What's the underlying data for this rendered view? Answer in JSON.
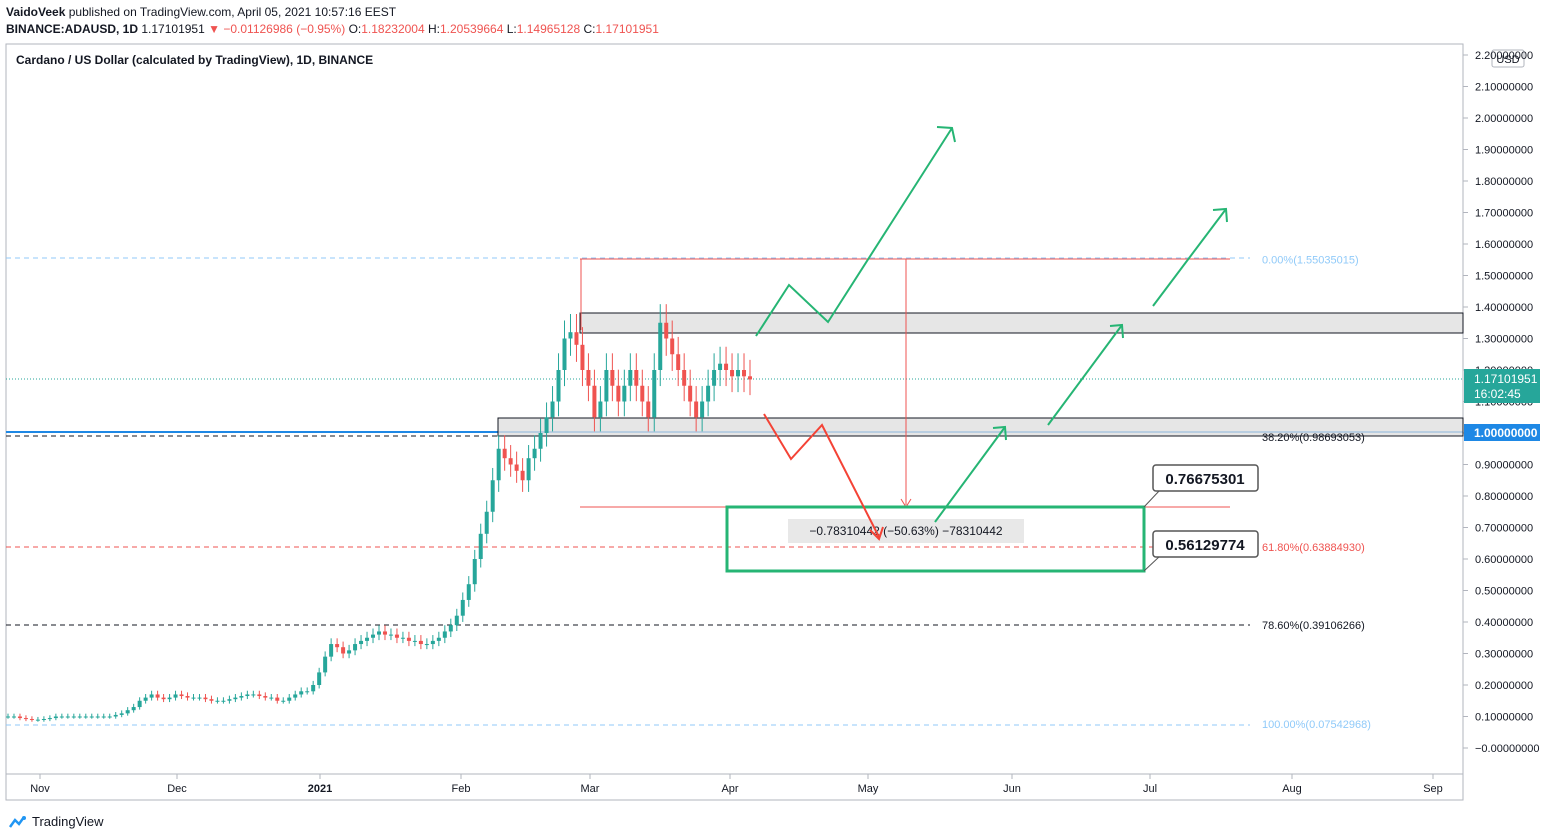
{
  "header": {
    "author": "VaidoVeek",
    "published_text": "published on TradingView.com, April 05, 2021 10:57:16 EEST",
    "symbol": "BINANCE:ADAUSD, 1D",
    "last": "1.17101951",
    "change": "−0.01126986 (−0.95%)",
    "o_label": "O:",
    "o": "1.18232004",
    "h_label": "H:",
    "h": "1.20539664",
    "l_label": "L:",
    "l": "1.14965128",
    "c_label": "C:",
    "c": "1.17101951"
  },
  "chart_title": "Cardano / US Dollar (calculated by TradingView), 1D, BINANCE",
  "currency_badge": "USD",
  "price_labels": {
    "current_price": "1.17101951",
    "countdown": "16:02:45",
    "level": "1.00000000"
  },
  "fib_labels": [
    {
      "text": "0.00%(1.55035015)",
      "price": 1.55035015,
      "color": "#90caf9"
    },
    {
      "text": "38.20%(0.98693053)",
      "price": 0.98693053,
      "color": "#131722"
    },
    {
      "text": "61.80%(0.63884930)",
      "price": 0.6388493,
      "color": "#ef5350"
    },
    {
      "text": "78.60%(0.39106266)",
      "price": 0.39106266,
      "color": "#131722"
    },
    {
      "text": "100.00%(0.07542968)",
      "price": 0.07542968,
      "color": "#90caf9"
    }
  ],
  "callouts": [
    {
      "text": "0.76675301",
      "price": 0.76675301
    },
    {
      "text": "0.56129774",
      "price": 0.56129774
    }
  ],
  "measure_label": "−0.78310442 (−50.63%) −78310442",
  "footer_brand": "TradingView",
  "colors": {
    "up": "#26a69a",
    "down": "#ef5350",
    "arrow_green": "#26b574",
    "arrow_red": "#f44336",
    "level_blue": "#1e88e5",
    "zone_fill": "#e0e0e0"
  },
  "chart_data": {
    "type": "candlestick",
    "title": "Cardano / US Dollar (calculated by TradingView), 1D, BINANCE",
    "y_axis_ticks": [
      "2.20000000",
      "2.10000000",
      "2.00000000",
      "1.90000000",
      "1.80000000",
      "1.70000000",
      "1.60000000",
      "1.50000000",
      "1.40000000",
      "1.30000000",
      "1.20000000",
      "1.10000000",
      "1.00000000",
      "0.90000000",
      "0.80000000",
      "0.70000000",
      "0.60000000",
      "0.50000000",
      "0.40000000",
      "0.30000000",
      "0.20000000",
      "0.10000000",
      "−0.00000000"
    ],
    "x_axis_ticks": [
      "Nov",
      "Dec",
      "2021",
      "Feb",
      "Mar",
      "Apr",
      "May",
      "Jun",
      "Jul",
      "Aug",
      "Sep"
    ],
    "ylim": [
      -0.05,
      2.22
    ],
    "close_series": [
      0.1,
      0.1,
      0.095,
      0.092,
      0.09,
      0.09,
      0.092,
      0.095,
      0.1,
      0.1,
      0.1,
      0.1,
      0.1,
      0.1,
      0.1,
      0.1,
      0.1,
      0.1,
      0.105,
      0.11,
      0.12,
      0.13,
      0.15,
      0.16,
      0.17,
      0.16,
      0.155,
      0.16,
      0.17,
      0.165,
      0.16,
      0.16,
      0.16,
      0.155,
      0.15,
      0.15,
      0.15,
      0.155,
      0.16,
      0.165,
      0.17,
      0.17,
      0.165,
      0.16,
      0.16,
      0.15,
      0.15,
      0.16,
      0.17,
      0.18,
      0.18,
      0.2,
      0.24,
      0.29,
      0.33,
      0.32,
      0.3,
      0.31,
      0.33,
      0.34,
      0.35,
      0.36,
      0.37,
      0.36,
      0.36,
      0.35,
      0.35,
      0.34,
      0.34,
      0.33,
      0.33,
      0.34,
      0.35,
      0.37,
      0.39,
      0.42,
      0.47,
      0.52,
      0.6,
      0.68,
      0.75,
      0.85,
      0.95,
      0.92,
      0.9,
      0.88,
      0.85,
      0.92,
      0.95,
      1.0,
      1.05,
      1.1,
      1.2,
      1.3,
      1.32,
      1.28,
      1.2,
      1.15,
      1.05,
      1.1,
      1.2,
      1.15,
      1.1,
      1.15,
      1.2,
      1.15,
      1.1,
      1.05,
      1.2,
      1.35,
      1.3,
      1.25,
      1.2,
      1.15,
      1.1,
      1.05,
      1.1,
      1.15,
      1.2,
      1.22,
      1.2,
      1.18,
      1.2,
      1.18,
      1.17
    ],
    "levels": [
      1.55035015,
      0.98693053,
      0.6388493,
      0.39106266,
      0.07542968,
      1.0,
      0.76675301,
      0.56129774
    ]
  }
}
